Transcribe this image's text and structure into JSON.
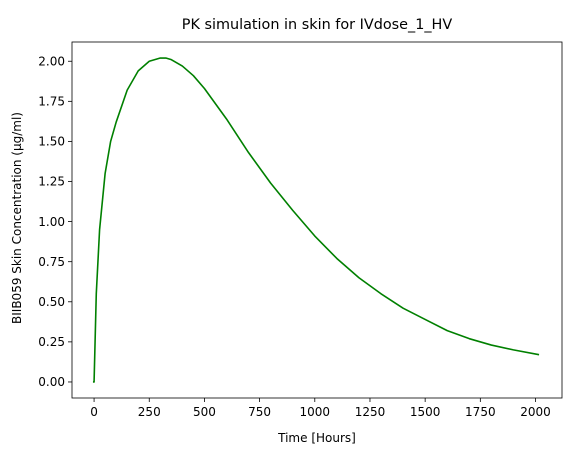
{
  "chart_data": {
    "type": "line",
    "title": "PK simulation in skin for IVdose_1_HV",
    "xlabel": "Time [Hours]",
    "ylabel": "BIIB059 Skin Concentration (µg/ml)",
    "xlim": [
      -100,
      2120
    ],
    "ylim": [
      -0.1,
      2.12
    ],
    "xticks": [
      0,
      250,
      500,
      750,
      1000,
      1250,
      1500,
      1750,
      2000
    ],
    "yticks": [
      0.0,
      0.25,
      0.5,
      0.75,
      1.0,
      1.25,
      1.5,
      1.75,
      2.0
    ],
    "xtick_labels": [
      "0",
      "250",
      "500",
      "750",
      "1000",
      "1250",
      "1500",
      "1750",
      "2000"
    ],
    "ytick_labels": [
      "0.00",
      "0.25",
      "0.50",
      "0.75",
      "1.00",
      "1.25",
      "1.50",
      "1.75",
      "2.00"
    ],
    "grid": false,
    "series": [
      {
        "color": "#008000",
        "x": [
          -5,
          0,
          10,
          25,
          50,
          75,
          100,
          150,
          200,
          250,
          300,
          325,
          350,
          400,
          450,
          500,
          600,
          700,
          800,
          900,
          1000,
          1100,
          1200,
          1300,
          1400,
          1500,
          1600,
          1700,
          1800,
          1900,
          2016
        ],
        "y": [
          0.0,
          0.0,
          0.55,
          0.95,
          1.3,
          1.5,
          1.62,
          1.82,
          1.94,
          2.0,
          2.02,
          2.02,
          2.01,
          1.97,
          1.91,
          1.83,
          1.64,
          1.43,
          1.24,
          1.07,
          0.91,
          0.77,
          0.65,
          0.55,
          0.46,
          0.39,
          0.32,
          0.27,
          0.23,
          0.2,
          0.17
        ]
      }
    ]
  }
}
